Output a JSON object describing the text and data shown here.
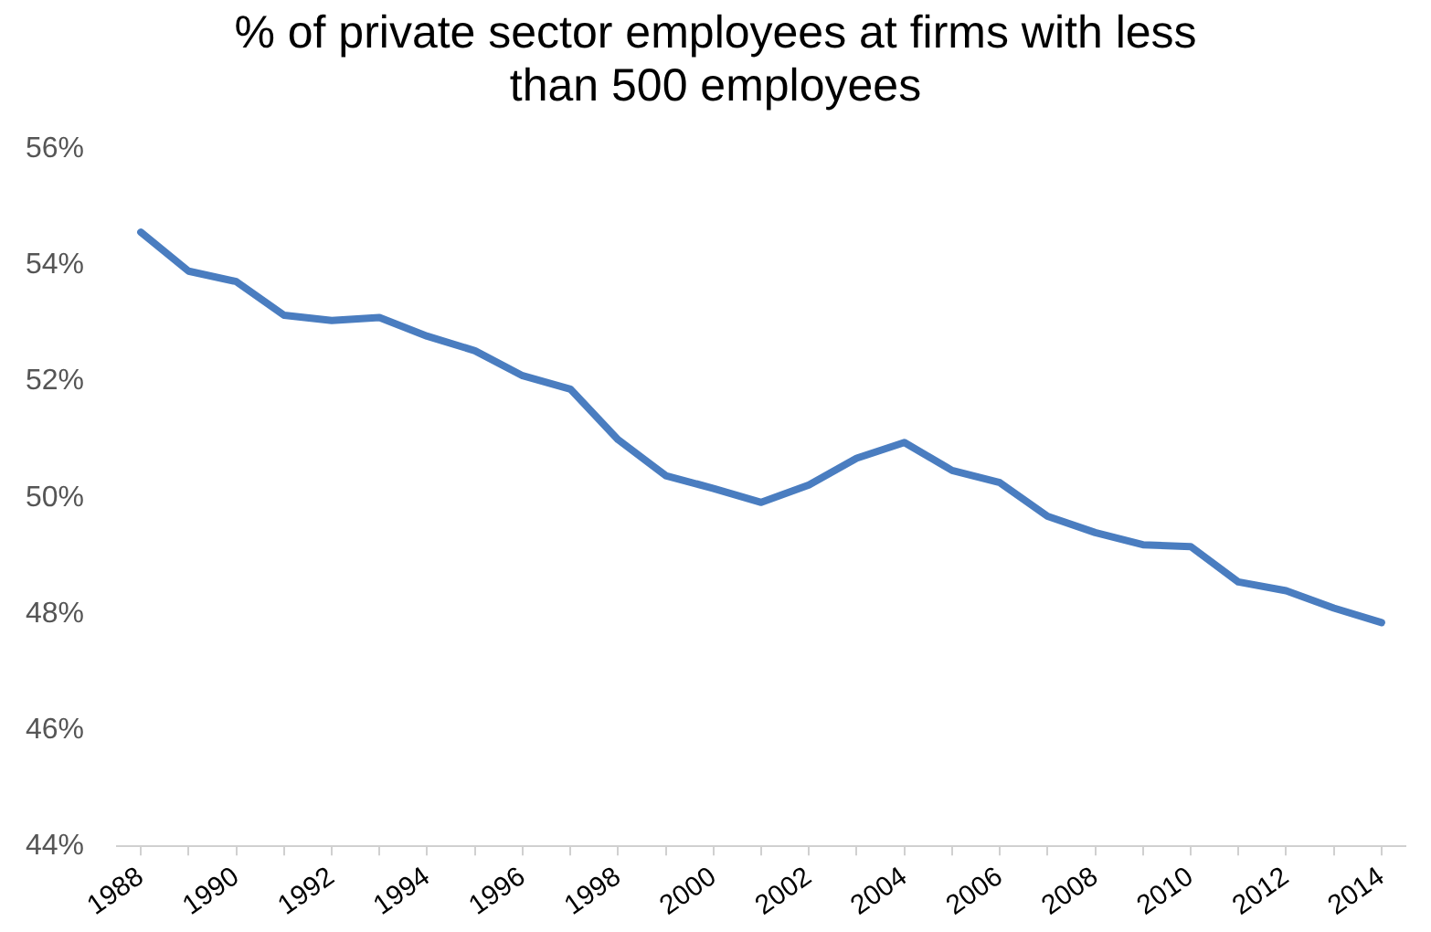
{
  "chart_data": {
    "type": "line",
    "title": "% of private sector employees at firms with less than 500 employees",
    "categories": [
      "1988",
      null,
      "1990",
      null,
      "1992",
      null,
      "1994",
      null,
      "1996",
      null,
      "1998",
      null,
      "2000",
      null,
      "2002",
      null,
      "2004",
      null,
      "2006",
      null,
      "2008",
      null,
      "2010",
      null,
      "2012",
      null,
      "2014"
    ],
    "series": [
      {
        "color": "#4a7dc0",
        "values": [
          54.57,
          53.9,
          53.72,
          53.14,
          53.05,
          53.1,
          52.78,
          52.53,
          52.1,
          51.87,
          51.0,
          50.38,
          50.16,
          49.92,
          50.22,
          50.68,
          50.95,
          50.47,
          50.26,
          49.68,
          49.4,
          49.19,
          49.16,
          48.55,
          48.4,
          48.1,
          47.85
        ]
      }
    ],
    "ylim": [
      44,
      56
    ],
    "yticks": [
      {
        "value": 44,
        "label": "44%"
      },
      {
        "value": 46,
        "label": "46%"
      },
      {
        "value": 48,
        "label": "48%"
      },
      {
        "value": 50,
        "label": "50%"
      },
      {
        "value": 52,
        "label": "52%"
      },
      {
        "value": 54,
        "label": "54%"
      },
      {
        "value": 56,
        "label": "56%"
      }
    ],
    "grid": false,
    "legend": false,
    "marker": "none",
    "line_style": "solid"
  }
}
